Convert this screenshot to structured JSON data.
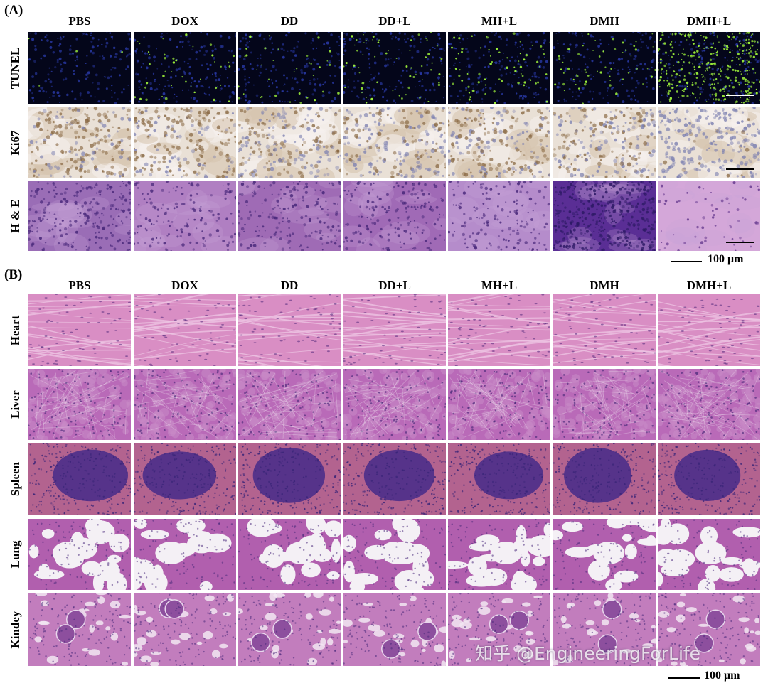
{
  "panels": {
    "A": {
      "letter": "(A)",
      "columns": [
        "PBS",
        "DOX",
        "DD",
        "DD+L",
        "MH+L",
        "DMH",
        "DMH+L"
      ],
      "rows": [
        "TUNEL",
        "Ki67",
        "H & E"
      ],
      "scale_label": "100 μm"
    },
    "B": {
      "letter": "(B)",
      "columns": [
        "PBS",
        "DOX",
        "DD",
        "DD+L",
        "MH+L",
        "DMH",
        "DMH+L"
      ],
      "rows": [
        "Heart",
        "Liver",
        "Spleen",
        "Lung",
        "Kindey"
      ],
      "scale_label": "100 μm"
    }
  },
  "watermark": "知乎 @EngineeringForLife",
  "colors": {
    "tunel_bg": "#04061a",
    "tunel_nuclei": "#2a3aa8",
    "tunel_positive": "#9cf03a",
    "ki67_bg": "#e9e0d6",
    "he_purple": "#8f5aa8",
    "heart_pink": "#d98ec4",
    "spleen_dark": "#4b2d8a"
  }
}
